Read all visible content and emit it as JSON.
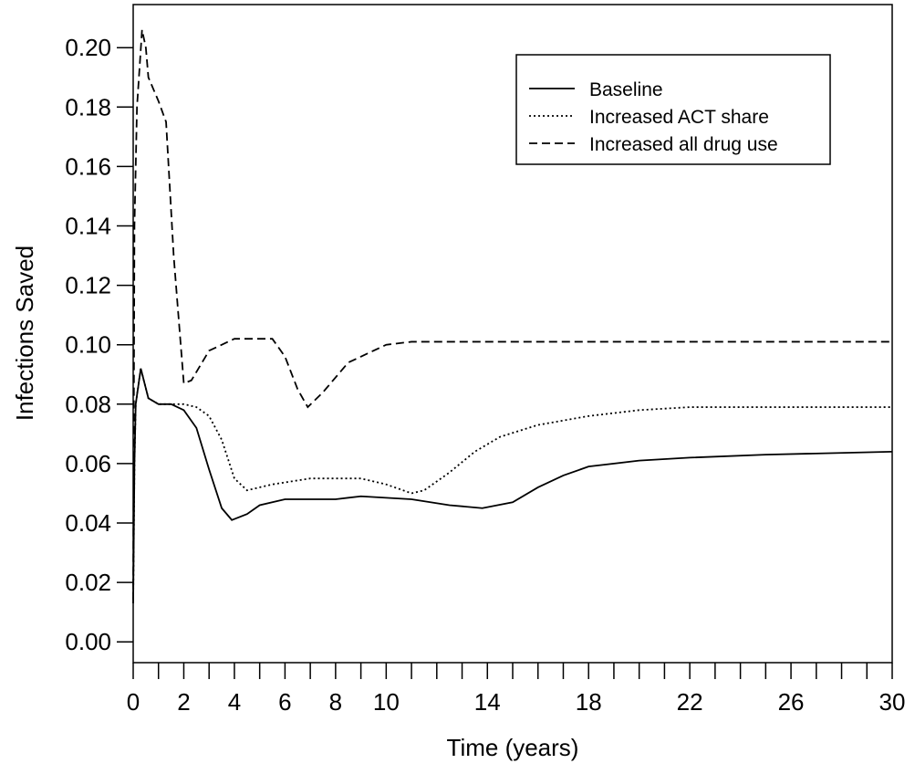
{
  "chart_data": {
    "type": "line",
    "x_label": "Time (years)",
    "y_label": "Infections Saved",
    "xlim": [
      0,
      30
    ],
    "ylim": [
      -0.007,
      0.2145
    ],
    "xticks": [
      0,
      2,
      4,
      6,
      8,
      10,
      14,
      18,
      22,
      26,
      30
    ],
    "xminor_ticks": [
      1,
      3,
      5,
      7,
      9,
      11,
      12,
      13,
      15,
      16,
      17,
      19,
      20,
      21,
      23,
      24,
      25,
      27,
      28,
      29
    ],
    "yticks": [
      {
        "value": 0,
        "label": "0.00"
      },
      0.02,
      0.04,
      0.06,
      0.08,
      {
        "value": 0.1,
        "label": "0.10"
      },
      0.12,
      0.14,
      0.16,
      0.18,
      {
        "value": 0.2,
        "label": "0.20"
      }
    ],
    "legend": "top-right",
    "series": [
      {
        "name": "Baseline",
        "color": "#000000",
        "dash": "solid",
        "x": [
          0,
          0.05,
          0.1,
          0.3,
          0.6,
          1,
          1.5,
          2,
          2.5,
          3,
          3.5,
          3.9,
          4.5,
          5,
          6,
          8,
          9,
          11,
          12.5,
          13.8,
          15,
          16,
          17,
          18,
          20,
          22,
          25,
          30
        ],
        "values": [
          0.013,
          0.06,
          0.08,
          0.092,
          0.082,
          0.08,
          0.08,
          0.078,
          0.072,
          0.058,
          0.045,
          0.041,
          0.043,
          0.046,
          0.048,
          0.048,
          0.049,
          0.048,
          0.046,
          0.045,
          0.047,
          0.052,
          0.056,
          0.059,
          0.061,
          0.062,
          0.063,
          0.064
        ]
      },
      {
        "name": "Increased ACT share",
        "color": "#000000",
        "dash": "dotted",
        "x": [
          0,
          0.05,
          0.1,
          0.3,
          0.6,
          1,
          2,
          2.5,
          3,
          3.5,
          4,
          4.5,
          5.5,
          7,
          9,
          10,
          11,
          11.5,
          12.5,
          13.5,
          14.5,
          16,
          18,
          20,
          22,
          30
        ],
        "values": [
          0.013,
          0.06,
          0.08,
          0.092,
          0.082,
          0.08,
          0.08,
          0.079,
          0.076,
          0.068,
          0.055,
          0.051,
          0.053,
          0.055,
          0.055,
          0.053,
          0.05,
          0.051,
          0.057,
          0.064,
          0.069,
          0.073,
          0.076,
          0.078,
          0.079,
          0.079
        ]
      },
      {
        "name": "Increased all drug use",
        "color": "#000000",
        "dash": "dashed",
        "x": [
          0,
          0.05,
          0.15,
          0.35,
          0.5,
          0.6,
          1,
          1.3,
          1.6,
          2,
          2.3,
          3,
          4,
          5.5,
          6,
          6.5,
          6.9,
          7.5,
          8.5,
          10,
          11,
          30
        ],
        "values": [
          0.014,
          0.14,
          0.18,
          0.206,
          0.2,
          0.19,
          0.182,
          0.175,
          0.13,
          0.087,
          0.088,
          0.098,
          0.102,
          0.102,
          0.096,
          0.085,
          0.079,
          0.084,
          0.094,
          0.1,
          0.101,
          0.101
        ]
      }
    ]
  }
}
